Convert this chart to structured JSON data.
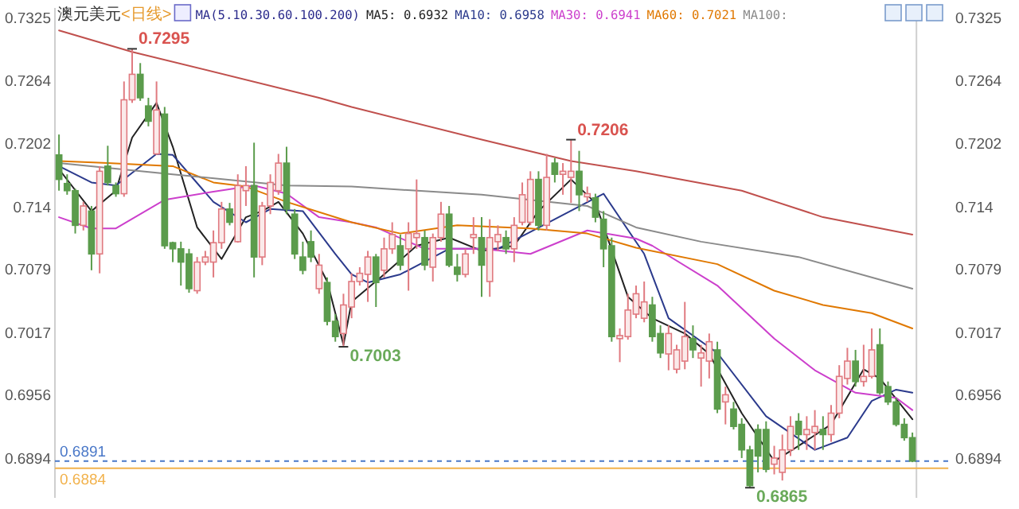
{
  "chart_data": {
    "type": "candlestick",
    "title": "澳元美元",
    "subtitle": "<日线>",
    "legend_title": "MA(5.10.30.60.100.200)",
    "legend": "top",
    "categories": [
      null,
      null,
      null,
      null,
      null,
      null,
      null,
      null,
      null,
      null,
      null,
      null,
      null,
      null,
      null,
      null,
      null,
      null,
      null,
      null,
      null,
      null,
      null,
      null,
      null,
      null,
      null,
      null,
      null,
      null,
      null,
      null,
      null,
      null,
      null,
      null,
      null,
      null,
      null,
      null,
      null,
      null,
      null,
      null,
      null,
      null,
      null,
      null,
      null,
      null,
      null,
      null,
      null,
      null,
      null,
      null,
      null,
      null,
      null,
      null,
      null,
      null,
      null,
      null,
      null,
      null,
      null,
      null,
      null,
      null,
      null,
      null,
      null,
      null,
      null,
      null,
      null,
      null,
      null,
      null,
      null,
      null,
      null,
      null,
      null,
      null,
      null,
      null,
      null,
      null,
      null,
      null,
      null,
      null,
      null,
      null,
      null,
      null,
      null,
      null,
      null,
      null,
      null,
      null,
      null,
      null
    ],
    "ohlc": [
      [
        0.7191,
        0.7211,
        0.7156,
        0.7167
      ],
      [
        0.7163,
        0.7172,
        0.7152,
        0.7156
      ],
      [
        0.7156,
        0.7158,
        0.7114,
        0.7122
      ],
      [
        0.7122,
        0.7145,
        0.7117,
        0.7141
      ],
      [
        0.7136,
        0.7141,
        0.7078,
        0.7094
      ],
      [
        0.7094,
        0.718,
        0.7075,
        0.7175
      ],
      [
        0.718,
        0.72,
        0.7161,
        0.7164
      ],
      [
        0.7161,
        0.7164,
        0.715,
        0.7153
      ],
      [
        0.7153,
        0.7263,
        0.715,
        0.7245
      ],
      [
        0.7245,
        0.7295,
        0.7242,
        0.727
      ],
      [
        0.727,
        0.7281,
        0.7244,
        0.7247
      ],
      [
        0.7239,
        0.7247,
        0.7219,
        0.7224
      ],
      [
        0.7192,
        0.7263,
        0.7191,
        0.7235
      ],
      [
        0.7231,
        0.7238,
        0.7099,
        0.7102
      ],
      [
        0.7105,
        0.7106,
        0.7086,
        0.7099
      ],
      [
        0.7099,
        0.7106,
        0.7063,
        0.7086
      ],
      [
        0.7094,
        0.7099,
        0.7056,
        0.706
      ],
      [
        0.7058,
        0.7091,
        0.7055,
        0.7086
      ],
      [
        0.7086,
        0.7097,
        0.7083,
        0.7091
      ],
      [
        0.7086,
        0.7117,
        0.7071,
        0.7105
      ],
      [
        0.7105,
        0.7145,
        0.7099,
        0.7138
      ],
      [
        0.7138,
        0.7144,
        0.7122,
        0.7125
      ],
      [
        0.7106,
        0.7172,
        0.7105,
        0.7161
      ],
      [
        0.7156,
        0.718,
        0.7141,
        0.7161
      ],
      [
        0.7161,
        0.7203,
        0.7071,
        0.7091
      ],
      [
        0.7091,
        0.7145,
        0.7083,
        0.7141
      ],
      [
        0.7141,
        0.7172,
        0.7133,
        0.7164
      ],
      [
        0.7156,
        0.7192,
        0.7152,
        0.7183
      ],
      [
        0.7183,
        0.7199,
        0.7133,
        0.7138
      ],
      [
        0.7133,
        0.7138,
        0.7089,
        0.7094
      ],
      [
        0.7091,
        0.7106,
        0.7074,
        0.7078
      ],
      [
        0.7106,
        0.7117,
        0.7086,
        0.7091
      ],
      [
        0.706,
        0.7094,
        0.7055,
        0.7083
      ],
      [
        0.7066,
        0.7071,
        0.7024,
        0.7028
      ],
      [
        0.7028,
        0.7035,
        0.7008,
        0.7013
      ],
      [
        0.7016,
        0.7055,
        0.7003,
        0.7044
      ],
      [
        0.7042,
        0.7075,
        0.7031,
        0.7067
      ],
      [
        0.7067,
        0.7081,
        0.7063,
        0.7075
      ],
      [
        0.7074,
        0.7097,
        0.7047,
        0.7091
      ],
      [
        0.7091,
        0.7094,
        0.7042,
        0.7066
      ],
      [
        0.7078,
        0.711,
        0.7071,
        0.7099
      ],
      [
        0.7099,
        0.7125,
        0.7094,
        0.7113
      ],
      [
        0.7102,
        0.7113,
        0.7078,
        0.7083
      ],
      [
        0.7099,
        0.7125,
        0.7058,
        0.7114
      ],
      [
        0.711,
        0.7167,
        0.7099,
        0.7114
      ],
      [
        0.711,
        0.7117,
        0.7078,
        0.7083
      ],
      [
        0.7081,
        0.7114,
        0.7067,
        0.711
      ],
      [
        0.711,
        0.7145,
        0.7106,
        0.7133
      ],
      [
        0.7133,
        0.7141,
        0.7081,
        0.7083
      ],
      [
        0.7081,
        0.7094,
        0.7067,
        0.7074
      ],
      [
        0.7074,
        0.7099,
        0.7071,
        0.7094
      ],
      [
        0.711,
        0.713,
        0.7094,
        0.7113
      ],
      [
        0.711,
        0.713,
        0.7052,
        0.7083
      ],
      [
        0.7067,
        0.7128,
        0.7052,
        0.711
      ],
      [
        0.7106,
        0.7122,
        0.7097,
        0.7113
      ],
      [
        0.711,
        0.7117,
        0.7094,
        0.7099
      ],
      [
        0.7099,
        0.713,
        0.7086,
        0.7122
      ],
      [
        0.7125,
        0.7164,
        0.7122,
        0.7152
      ],
      [
        0.7125,
        0.7175,
        0.7122,
        0.7167
      ],
      [
        0.7167,
        0.7175,
        0.7117,
        0.7122
      ],
      [
        0.7122,
        0.7192,
        0.7117,
        0.7169
      ],
      [
        0.7183,
        0.7188,
        0.7164,
        0.7172
      ],
      [
        0.7172,
        0.7183,
        0.7152,
        0.7175
      ],
      [
        0.7169,
        0.7206,
        0.7144,
        0.7175
      ],
      [
        0.7175,
        0.7195,
        0.7136,
        0.7152
      ],
      [
        0.715,
        0.716,
        0.7145,
        0.7153
      ],
      [
        0.7149,
        0.7153,
        0.7125,
        0.713
      ],
      [
        0.7128,
        0.7136,
        0.7081,
        0.7099
      ],
      [
        0.7102,
        0.711,
        0.7008,
        0.7013
      ],
      [
        0.7011,
        0.7021,
        0.6988,
        0.7014
      ],
      [
        0.7013,
        0.7055,
        0.701,
        0.7039
      ],
      [
        0.7035,
        0.7063,
        0.7031,
        0.7055
      ],
      [
        0.7031,
        0.7067,
        0.7027,
        0.7047
      ],
      [
        0.7044,
        0.7052,
        0.7008,
        0.7013
      ],
      [
        0.7016,
        0.7024,
        0.6992,
        0.6997
      ],
      [
        0.6996,
        0.7024,
        0.698,
        0.7016
      ],
      [
        0.6981,
        0.7005,
        0.6977,
        0.7
      ],
      [
        0.6989,
        0.7047,
        0.6981,
        0.7013
      ],
      [
        0.7011,
        0.7024,
        0.6992,
        0.7
      ],
      [
        0.6992,
        0.7005,
        0.6964,
        0.6997
      ],
      [
        0.6989,
        0.7016,
        0.6972,
        0.7008
      ],
      [
        0.7,
        0.7008,
        0.6938,
        0.6942
      ],
      [
        0.6949,
        0.6964,
        0.6927,
        0.6956
      ],
      [
        0.6942,
        0.6949,
        0.6922,
        0.6925
      ],
      [
        0.6927,
        0.6933,
        0.6894,
        0.6902
      ],
      [
        0.6902,
        0.6906,
        0.6865,
        0.6867
      ],
      [
        0.6922,
        0.6927,
        0.688,
        0.6896
      ],
      [
        0.6922,
        0.693,
        0.688,
        0.6883
      ],
      [
        0.6888,
        0.6906,
        0.6878,
        0.6894
      ],
      [
        0.688,
        0.6917,
        0.6872,
        0.6902
      ],
      [
        0.6902,
        0.6935,
        0.6896,
        0.6925
      ],
      [
        0.693,
        0.6938,
        0.6902,
        0.6917
      ],
      [
        0.6917,
        0.6935,
        0.6902,
        0.6922
      ],
      [
        0.6919,
        0.6941,
        0.6902,
        0.6925
      ],
      [
        0.6922,
        0.6935,
        0.6902,
        0.6917
      ],
      [
        0.6917,
        0.6946,
        0.691,
        0.6938
      ],
      [
        0.6938,
        0.6985,
        0.6933,
        0.6974
      ],
      [
        0.6972,
        0.7002,
        0.6966,
        0.6989
      ],
      [
        0.6989,
        0.7,
        0.6964,
        0.6969
      ],
      [
        0.6969,
        0.7005,
        0.6964,
        0.6974
      ],
      [
        0.6974,
        0.7021,
        0.6972,
        0.7
      ],
      [
        0.7005,
        0.7021,
        0.6956,
        0.6958
      ],
      [
        0.6964,
        0.6969,
        0.6946,
        0.6949
      ],
      [
        0.6949,
        0.6953,
        0.6925,
        0.6927
      ],
      [
        0.6927,
        0.6933,
        0.6911,
        0.6914
      ],
      [
        0.6914,
        0.6919,
        0.689,
        0.6891
      ]
    ],
    "series": [
      {
        "type": "line",
        "name": "MA5: 0.6932",
        "color": "#222222",
        "values": [
          0.7177,
          null,
          null,
          null,
          0.7136,
          null,
          null,
          0.7156,
          null,
          0.7208,
          null,
          null,
          0.7242,
          null,
          0.7199,
          null,
          null,
          0.712,
          null,
          null,
          0.7089,
          null,
          null,
          0.713,
          null,
          0.7136,
          null,
          0.7145,
          null,
          null,
          0.7114,
          null,
          null,
          0.7067,
          null,
          0.7005,
          0.7047,
          null,
          null,
          null,
          0.7074,
          null,
          null,
          null,
          0.7102,
          null,
          null,
          null,
          0.711,
          null,
          null,
          null,
          0.7097,
          null,
          null,
          null,
          0.7102,
          null,
          null,
          0.7136,
          null,
          null,
          null,
          0.7167,
          null,
          null,
          0.7144,
          null,
          null,
          null,
          0.7052,
          null,
          null,
          0.7031,
          null,
          null,
          null,
          0.7016,
          null,
          null,
          0.6996,
          null,
          null,
          null,
          0.6938,
          null,
          null,
          null,
          0.6891,
          null,
          null,
          0.6906,
          null,
          null,
          null,
          0.6927,
          null,
          null,
          null,
          0.6981,
          null,
          0.6972,
          null,
          null,
          null,
          0.6932
        ]
      },
      {
        "type": "line",
        "name": "MA10: 0.6958",
        "color": "#2b3a8c",
        "values": [
          0.718,
          null,
          null,
          null,
          0.7164,
          null,
          null,
          0.7161,
          null,
          null,
          null,
          null,
          0.7192,
          null,
          0.7191,
          null,
          null,
          null,
          null,
          0.7145,
          null,
          null,
          null,
          0.7125,
          null,
          null,
          0.7138,
          null,
          null,
          null,
          0.7136,
          null,
          null,
          null,
          0.7094,
          null,
          0.7074,
          null,
          0.7066,
          null,
          null,
          null,
          0.7074,
          null,
          null,
          null,
          null,
          null,
          0.7099,
          null,
          null,
          null,
          null,
          null,
          0.7099,
          null,
          null,
          null,
          null,
          null,
          null,
          0.7128,
          null,
          null,
          null,
          null,
          null,
          0.7153,
          null,
          null,
          null,
          null,
          0.7094,
          null,
          null,
          0.7031,
          null,
          null,
          null,
          null,
          null,
          0.6997,
          null,
          null,
          null,
          null,
          null,
          0.6935,
          null,
          null,
          null,
          null,
          null,
          0.6902,
          null,
          null,
          null,
          0.6914,
          null,
          null,
          0.695,
          null,
          null,
          0.6961,
          null,
          0.6958
        ]
      },
      {
        "type": "line",
        "name": "MA30: 0.6941",
        "color": "#cc3fcc",
        "values": [
          0.713,
          null,
          null,
          null,
          0.7119,
          null,
          null,
          0.7119,
          null,
          null,
          null,
          null,
          null,
          0.7147,
          null,
          null,
          null,
          null,
          null,
          0.7155,
          null,
          null,
          null,
          null,
          0.7161,
          null,
          null,
          null,
          0.7153,
          null,
          null,
          null,
          0.713,
          null,
          null,
          null,
          0.7125,
          null,
          null,
          0.712,
          null,
          null,
          null,
          null,
          null,
          0.7099,
          null,
          null,
          null,
          null,
          null,
          null,
          0.7099,
          null,
          null,
          null,
          null,
          null,
          0.7094,
          null,
          null,
          null,
          null,
          null,
          null,
          0.7117,
          null,
          null,
          null,
          null,
          null,
          0.7109,
          null,
          0.7102,
          null,
          null,
          null,
          null,
          null,
          null,
          null,
          0.7063,
          null,
          null,
          null,
          null,
          null,
          null,
          0.7011,
          null,
          null,
          null,
          null,
          0.698,
          null,
          null,
          null,
          null,
          0.6958,
          null,
          null,
          null,
          null,
          0.6953,
          null,
          0.6941
        ]
      },
      {
        "type": "line",
        "name": "MA60: 0.7021",
        "color": "#e07800",
        "values": [
          0.7185,
          null,
          null,
          null,
          null,
          null,
          0.7183,
          null,
          null,
          null,
          null,
          null,
          null,
          null,
          0.718,
          null,
          null,
          null,
          null,
          0.7164,
          null,
          null,
          null,
          0.716,
          null,
          null,
          null,
          null,
          0.7145,
          null,
          null,
          null,
          null,
          null,
          null,
          null,
          0.7125,
          null,
          null,
          null,
          null,
          null,
          0.7114,
          null,
          null,
          null,
          null,
          null,
          null,
          0.7122,
          null,
          null,
          null,
          null,
          null,
          null,
          null,
          null,
          0.7119,
          null,
          null,
          null,
          null,
          null,
          null,
          0.7114,
          null,
          null,
          null,
          null,
          null,
          0.71,
          null,
          null,
          null,
          null,
          null,
          null,
          null,
          null,
          null,
          0.7084,
          null,
          null,
          null,
          null,
          null,
          null,
          0.7058,
          null,
          null,
          null,
          null,
          null,
          0.7044,
          null,
          null,
          null,
          null,
          null,
          0.7036,
          null,
          null,
          null,
          null,
          0.7021
        ]
      },
      {
        "type": "line",
        "name": "MA100:",
        "color": "#8a8a8a",
        "values": [
          0.7183,
          null,
          null,
          null,
          null,
          null,
          null,
          null,
          null,
          null,
          null,
          null,
          null,
          null,
          0.7172,
          null,
          null,
          null,
          null,
          null,
          null,
          null,
          null,
          null,
          null,
          null,
          null,
          null,
          0.7161,
          null,
          null,
          null,
          null,
          null,
          null,
          null,
          0.716,
          null,
          null,
          null,
          null,
          null,
          null,
          null,
          null,
          null,
          null,
          null,
          null,
          null,
          null,
          null,
          0.7152,
          null,
          null,
          null,
          null,
          null,
          null,
          null,
          null,
          null,
          null,
          null,
          null,
          0.7141,
          null,
          null,
          null,
          null,
          null,
          0.712,
          null,
          null,
          null,
          null,
          null,
          null,
          null,
          0.7106,
          null,
          null,
          null,
          null,
          null,
          null,
          null,
          null,
          null,
          null,
          null,
          0.7091,
          null,
          null,
          null,
          null,
          null,
          null,
          null,
          null,
          null,
          null,
          null,
          null,
          null,
          0.706
        ]
      },
      {
        "type": "line",
        "color": "#c0504d",
        "values": [
          0.7313,
          null,
          null,
          null,
          null,
          null,
          null,
          null,
          null,
          0.7292,
          null,
          null,
          null,
          null,
          null,
          null,
          null,
          null,
          null,
          null,
          null,
          null,
          null,
          null,
          null,
          null,
          null,
          null,
          null,
          null,
          null,
          null,
          0.7247,
          null,
          null,
          null,
          0.7238,
          null,
          null,
          null,
          null,
          null,
          null,
          null,
          null,
          null,
          null,
          null,
          null,
          null,
          null,
          null,
          0.7206,
          null,
          null,
          null,
          null,
          null,
          null,
          null,
          null,
          null,
          null,
          0.7185,
          null,
          null,
          null,
          null,
          null,
          null,
          null,
          0.7175,
          null,
          null,
          null,
          null,
          null,
          null,
          null,
          null,
          null,
          null,
          null,
          null,
          0.7156,
          null,
          null,
          null,
          null,
          null,
          null,
          null,
          null,
          null,
          0.713,
          null,
          null,
          null,
          null,
          null,
          null,
          null,
          null,
          null,
          null,
          0.7113
        ]
      }
    ],
    "ylim": [
      0.6855,
      0.7335
    ],
    "yticks": [
      0.6894,
      0.6956,
      0.7017,
      0.7079,
      0.714,
      0.7202,
      0.7264,
      0.7325
    ],
    "y2lim": [
      0.6855,
      0.7335
    ],
    "y2ticks": [
      0.6894,
      0.6956,
      0.7017,
      0.7079,
      0.714,
      0.7202,
      0.7264,
      0.7325
    ],
    "ref_lines": [
      {
        "axis": "y",
        "value": 0.6891,
        "label": "0.6891",
        "color": "#4a78c8",
        "line_style": "dashed"
      },
      {
        "axis": "y",
        "value": 0.6884,
        "label": "0.6884",
        "color": "#f2b24c",
        "line_style": "solid"
      }
    ],
    "annotations": [
      "0.7295",
      "0.7206",
      "0.7003",
      "0.6865"
    ]
  }
}
